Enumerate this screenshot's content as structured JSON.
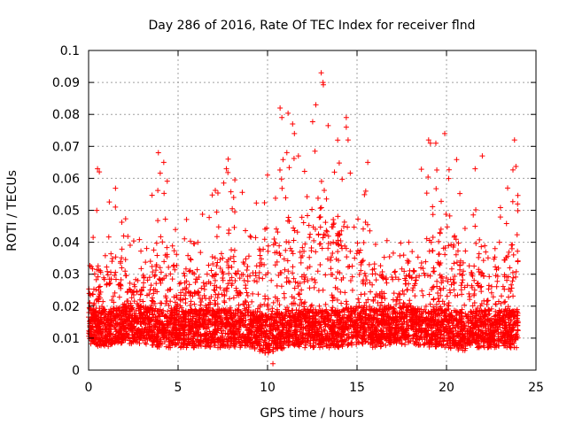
{
  "chart_data": {
    "type": "scatter",
    "title": "Day 286 of 2016, Rate Of TEC Index for receiver flnd",
    "xlabel": "GPS time / hours",
    "ylabel": "ROTI / TECUs",
    "xlim": [
      0,
      25
    ],
    "ylim": [
      0,
      0.1
    ],
    "grid": true,
    "marker": "+",
    "marker_color": "#ff0000",
    "x_ticks": [
      {
        "value": 0,
        "label": "0"
      },
      {
        "value": 5,
        "label": "5"
      },
      {
        "value": 10,
        "label": "10"
      },
      {
        "value": 15,
        "label": "15"
      },
      {
        "value": 20,
        "label": "20"
      },
      {
        "value": 25,
        "label": "25"
      }
    ],
    "y_ticks": [
      {
        "value": 0,
        "label": "0"
      },
      {
        "value": 0.01,
        "label": "0.01"
      },
      {
        "value": 0.02,
        "label": "0.02"
      },
      {
        "value": 0.03,
        "label": "0.03"
      },
      {
        "value": 0.04,
        "label": "0.04"
      },
      {
        "value": 0.05,
        "label": "0.05"
      },
      {
        "value": 0.06,
        "label": "0.06"
      },
      {
        "value": 0.07,
        "label": "0.07"
      },
      {
        "value": 0.08,
        "label": "0.08"
      },
      {
        "value": 0.09,
        "label": "0.09"
      },
      {
        "value": 0.1,
        "label": "0.1"
      }
    ],
    "series": [
      {
        "name": "ROTI",
        "x_range": [
          0,
          24
        ],
        "envelope_hours": [
          0,
          1,
          2,
          3,
          4,
          5,
          6,
          7,
          8,
          9,
          10,
          11,
          12,
          13,
          14,
          15,
          16,
          17,
          18,
          19,
          20,
          21,
          22,
          23,
          24
        ],
        "envelope_upper": [
          0.04,
          0.063,
          0.051,
          0.045,
          0.068,
          0.05,
          0.048,
          0.057,
          0.066,
          0.051,
          0.061,
          0.083,
          0.078,
          0.093,
          0.08,
          0.065,
          0.049,
          0.046,
          0.055,
          0.072,
          0.074,
          0.062,
          0.067,
          0.051,
          0.072
        ],
        "envelope_lower": [
          0.005,
          0.004,
          0.005,
          0.005,
          0.004,
          0.004,
          0.004,
          0.004,
          0.004,
          0.004,
          0.002,
          0.004,
          0.004,
          0.004,
          0.004,
          0.005,
          0.004,
          0.005,
          0.005,
          0.004,
          0.004,
          0.003,
          0.004,
          0.004,
          0.004
        ],
        "outliers": [
          {
            "x": 0.5,
            "y": 0.063
          },
          {
            "x": 0.6,
            "y": 0.062
          },
          {
            "x": 1.5,
            "y": 0.051
          },
          {
            "x": 3.9,
            "y": 0.068
          },
          {
            "x": 4.2,
            "y": 0.065
          },
          {
            "x": 7.8,
            "y": 0.066
          },
          {
            "x": 7.7,
            "y": 0.063
          },
          {
            "x": 10.0,
            "y": 0.061
          },
          {
            "x": 10.7,
            "y": 0.082
          },
          {
            "x": 10.8,
            "y": 0.079
          },
          {
            "x": 11.4,
            "y": 0.077
          },
          {
            "x": 11.5,
            "y": 0.074
          },
          {
            "x": 12.7,
            "y": 0.083
          },
          {
            "x": 13.0,
            "y": 0.093
          },
          {
            "x": 13.1,
            "y": 0.09
          },
          {
            "x": 14.4,
            "y": 0.079
          },
          {
            "x": 14.4,
            "y": 0.076
          },
          {
            "x": 14.5,
            "y": 0.072
          },
          {
            "x": 15.6,
            "y": 0.065
          },
          {
            "x": 19.0,
            "y": 0.072
          },
          {
            "x": 19.1,
            "y": 0.071
          },
          {
            "x": 19.9,
            "y": 0.074
          },
          {
            "x": 21.6,
            "y": 0.063
          },
          {
            "x": 22.0,
            "y": 0.067
          },
          {
            "x": 23.8,
            "y": 0.072
          },
          {
            "x": 10.3,
            "y": 0.002
          }
        ]
      }
    ]
  }
}
